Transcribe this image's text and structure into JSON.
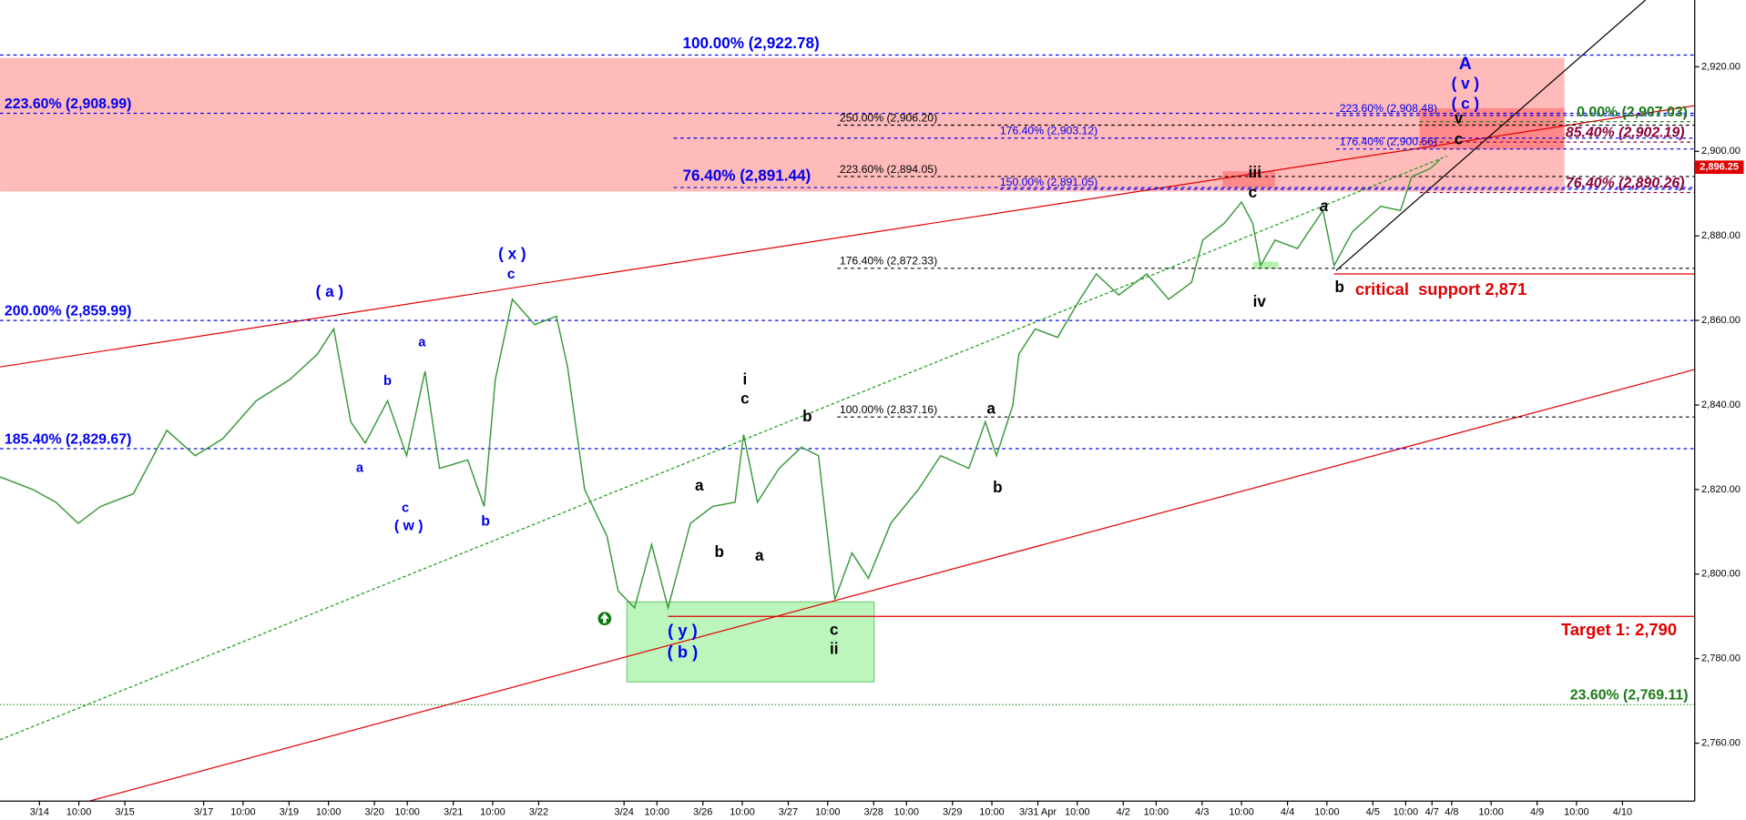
{
  "chart_data": {
    "type": "line",
    "color": "#3a9a3a",
    "x": [
      0,
      5,
      8.5,
      11.9,
      15.3,
      20.3,
      25.4,
      29.7,
      33.9,
      39,
      44.1,
      48.3,
      50.8,
      53.4,
      55.6,
      59,
      61.9,
      64.7,
      66.9,
      71.2,
      73.7,
      75.4,
      78,
      81.4,
      84.7,
      86.4,
      89,
      92.4,
      94.1,
      96.6,
      99.2,
      101.7,
      105.1,
      108.5,
      111.9,
      113.2,
      115.3,
      118.6,
      122,
      124.6,
      127.1,
      129.7,
      132.2,
      135.6,
      139.8,
      143.2,
      147.5,
      150,
      151.7,
      154.2,
      155.1,
      157.6,
      161,
      164.4,
      166.9,
      170.3,
      174.6,
      177.9,
      181.4,
      183.1,
      186.4,
      189,
      190.7,
      191.9,
      194.1,
      197.5,
      201.4,
      203.1,
      205.9,
      210.2,
      213.2,
      214.9,
      217.8,
      219.2
    ],
    "values": [
      2823,
      2820,
      2817,
      2812,
      2816,
      2819,
      2834,
      2828,
      2832,
      2841,
      2846,
      2852,
      2858,
      2836,
      2831,
      2841,
      2828,
      2848,
      2825,
      2827,
      2816,
      2846,
      2865,
      2859,
      2861,
      2849,
      2820,
      2809,
      2796,
      2792,
      2807,
      2792,
      2812,
      2816,
      2817,
      2833,
      2817,
      2825,
      2830,
      2828,
      2794,
      2805,
      2799,
      2812,
      2820,
      2828,
      2825,
      2836,
      2828,
      2840,
      2852,
      2858,
      2856,
      2865,
      2871,
      2866,
      2871,
      2865,
      2869,
      2879,
      2883,
      2888,
      2883,
      2873,
      2879,
      2877,
      2886,
      2873,
      2881,
      2887,
      2886,
      2894,
      2896,
      2898
    ],
    "xlim": [
      0,
      258
    ],
    "ylim": [
      2746.3,
      2935.8
    ],
    "yticks": [
      {
        "value": 2760,
        "label": "2,760.00"
      },
      {
        "value": 2780,
        "label": "2,780.00"
      },
      {
        "value": 2800,
        "label": "2,800.00"
      },
      {
        "value": 2820,
        "label": "2,820.00"
      },
      {
        "value": 2840,
        "label": "2,840.00"
      },
      {
        "value": 2860,
        "label": "2,860.00"
      },
      {
        "value": 2880,
        "label": "2,880.00"
      },
      {
        "value": 2900,
        "label": "2,900.00"
      },
      {
        "value": 2920,
        "label": "2,920.00"
      }
    ],
    "xticks": [
      {
        "value": 6,
        "label": "3/14"
      },
      {
        "value": 12,
        "label": "10:00"
      },
      {
        "value": 19,
        "label": "3/15"
      },
      {
        "value": 31,
        "label": "3/17"
      },
      {
        "value": 37,
        "label": "10:00"
      },
      {
        "value": 44,
        "label": "3/19"
      },
      {
        "value": 50,
        "label": "10:00"
      },
      {
        "value": 57,
        "label": "3/20"
      },
      {
        "value": 62,
        "label": "10:00"
      },
      {
        "value": 69,
        "label": "3/21"
      },
      {
        "value": 75,
        "label": "10:00"
      },
      {
        "value": 82,
        "label": "3/22"
      },
      {
        "value": 95,
        "label": "3/24"
      },
      {
        "value": 100,
        "label": "10:00"
      },
      {
        "value": 107,
        "label": "3/26"
      },
      {
        "value": 113,
        "label": "10:00"
      },
      {
        "value": 120,
        "label": "3/27"
      },
      {
        "value": 126,
        "label": "10:00"
      },
      {
        "value": 133,
        "label": "3/28"
      },
      {
        "value": 138,
        "label": "10:00"
      },
      {
        "value": 145,
        "label": "3/29"
      },
      {
        "value": 151,
        "label": "10:00"
      },
      {
        "value": 158,
        "label": "3/31 Apr"
      },
      {
        "value": 164,
        "label": "10:00"
      },
      {
        "value": 171,
        "label": "4/2"
      },
      {
        "value": 176,
        "label": "10:00"
      },
      {
        "value": 183,
        "label": "4/3"
      },
      {
        "value": 189,
        "label": "10:00"
      },
      {
        "value": 196,
        "label": "4/4"
      },
      {
        "value": 202,
        "label": "10:00"
      },
      {
        "value": 209,
        "label": "4/5"
      },
      {
        "value": 214,
        "label": "10:00"
      },
      {
        "value": 218,
        "label": "4/7"
      },
      {
        "value": 221,
        "label": "4/8"
      },
      {
        "value": 227,
        "label": "10:00"
      },
      {
        "value": 234,
        "label": "4/9"
      },
      {
        "value": 240,
        "label": "10:00"
      },
      {
        "value": 247,
        "label": "4/10"
      }
    ],
    "last_price": {
      "value": 2896.25,
      "label": "2,896.25",
      "color": "#e00000"
    },
    "levels": [
      {
        "label": "100.00% (2,922.78)",
        "value": 2922.78,
        "color": "#0000ee"
      },
      {
        "label": "223.60% (2,908.99)",
        "value": 2908.99,
        "color": "#0000ee"
      },
      {
        "label": "250.00% (2,906.20)",
        "value": 2906.2,
        "color": "#000000"
      },
      {
        "label": "176.40% (2,903.12)",
        "value": 2903.12,
        "color": "#0000ee"
      },
      {
        "label": "223.60% (2,894.05)",
        "value": 2894.05,
        "color": "#000000"
      },
      {
        "label": "76.40% (2,891.44)",
        "value": 2891.44,
        "color": "#0000ee"
      },
      {
        "label": "150.00% (2,891.05)",
        "value": 2891.05,
        "color": "#0000ee"
      },
      {
        "label": "223.60% (2,908.48)",
        "value": 2908.48,
        "color": "#0000ee"
      },
      {
        "label": "176.40% (2,900.56)",
        "value": 2900.56,
        "color": "#0000ee"
      },
      {
        "label": "0.00% (2,907.03)",
        "value": 2907.03,
        "color": "#1a7a1a"
      },
      {
        "label": "85.40% (2,902.19)",
        "value": 2902.19,
        "color": "#8b0038"
      },
      {
        "label": "76.40% (2,890.26)",
        "value": 2890.26,
        "color": "#8b0038"
      },
      {
        "label": "176.40% (2,872.33)",
        "value": 2872.33,
        "color": "#000000"
      },
      {
        "label": "200.00% (2,859.99)",
        "value": 2859.99,
        "color": "#0000ee"
      },
      {
        "label": "100.00% (2,837.16)",
        "value": 2837.16,
        "color": "#000000"
      },
      {
        "label": "185.40% (2,829.67)",
        "value": 2829.67,
        "color": "#0000ee"
      },
      {
        "label": "23.60% (2,769.11)",
        "value": 2769.11,
        "color": "#1a7a1a"
      },
      {
        "label": "critical  support 2,871",
        "value": 2871,
        "color": "#e00000"
      },
      {
        "label": "Target 1: 2,790",
        "value": 2790,
        "color": "#e00000"
      }
    ],
    "zones": [
      {
        "y": [
          2890.5,
          2922.1
        ],
        "color": "#ffb3b3"
      },
      {
        "y": [
          2900.5,
          2910.2
        ],
        "color": "#ff8080"
      },
      {
        "y": [
          2891.4,
          2895.3
        ],
        "color": "#ff8080"
      },
      {
        "y": [
          2872.2,
          2873.9
        ],
        "color": "#a8f0a0"
      },
      {
        "y": [
          2774.5,
          2793.4
        ],
        "color": "#b0f5b0"
      }
    ],
    "trendlines": [
      {
        "x": [
          0,
          258
        ],
        "values": [
          2849,
          2910.8
        ],
        "color": "#e00000"
      },
      {
        "x": [
          13.6,
          258
        ],
        "values": [
          2746.3,
          2848.4
        ],
        "color": "#e00000"
      },
      {
        "x": [
          0,
          220.3
        ],
        "values": [
          2760.8,
          2898.9
        ],
        "color": "#1a9a1a"
      },
      {
        "x": [
          203.4,
          250.5
        ],
        "values": [
          2871.8,
          2935.8
        ],
        "color": "#000000"
      }
    ],
    "annotations": [
      {
        "text": "( a )",
        "color": "#0000ee"
      },
      {
        "text": "( x )",
        "color": "#0000ee"
      },
      {
        "text": "c",
        "color": "#0000ee"
      },
      {
        "text": "a",
        "color": "#0000ee"
      },
      {
        "text": "b",
        "color": "#0000ee"
      },
      {
        "text": "a",
        "color": "#0000ee"
      },
      {
        "text": "c",
        "color": "#0000ee"
      },
      {
        "text": "( w )",
        "color": "#0000ee"
      },
      {
        "text": "b",
        "color": "#0000ee"
      },
      {
        "text": "( y )",
        "color": "#0000ee"
      },
      {
        "text": "( b )",
        "color": "#0000ee"
      },
      {
        "text": "A",
        "color": "#0000ee"
      },
      {
        "text": "( v )",
        "color": "#0000ee"
      },
      {
        "text": "( c )",
        "color": "#0000ee"
      },
      {
        "text": "i",
        "color": "#000000"
      },
      {
        "text": "c",
        "color": "#000000"
      },
      {
        "text": "b",
        "color": "#000000"
      },
      {
        "text": "a",
        "color": "#000000"
      },
      {
        "text": "b",
        "color": "#000000"
      },
      {
        "text": "a",
        "color": "#000000"
      },
      {
        "text": "c",
        "color": "#000000"
      },
      {
        "text": "ii",
        "color": "#000000"
      },
      {
        "text": "a",
        "color": "#000000"
      },
      {
        "text": "b",
        "color": "#000000"
      },
      {
        "text": "iii",
        "color": "#000000"
      },
      {
        "text": "c",
        "color": "#000000"
      },
      {
        "text": "iv",
        "color": "#000000"
      },
      {
        "text": "a",
        "color": "#000000"
      },
      {
        "text": "b",
        "color": "#000000"
      },
      {
        "text": "v",
        "color": "#000000"
      },
      {
        "text": "c",
        "color": "#000000"
      }
    ]
  }
}
